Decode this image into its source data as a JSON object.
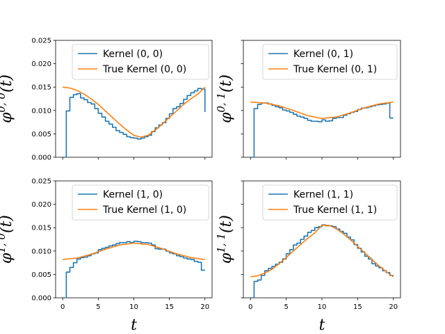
{
  "chart_data": [
    {
      "type": "line",
      "ylabel_base": "φ",
      "ylabel_sup": "0, 0",
      "ylabel_arg": "(t)",
      "xlabel": "",
      "xlim": [
        -1,
        21
      ],
      "ylim": [
        0,
        0.025
      ],
      "xticks": [
        0,
        5,
        10,
        15,
        20
      ],
      "yticks": [
        "0.000",
        "0.005",
        "0.010",
        "0.015",
        "0.020",
        "0.025"
      ],
      "legend_position": "top-right",
      "series": [
        {
          "name": "Kernel (0, 0)",
          "color": "#1f77b4",
          "step": true,
          "x": [
            0,
            0.5,
            1,
            1.5,
            2,
            2.5,
            3,
            3.5,
            4,
            4.5,
            5,
            5.5,
            6,
            6.5,
            7,
            7.5,
            8,
            8.5,
            9,
            9.5,
            10,
            10.5,
            11,
            11.5,
            12,
            12.5,
            13,
            13.5,
            14,
            14.5,
            15,
            15.5,
            16,
            16.5,
            17,
            17.5,
            18,
            18.5,
            19,
            19.5,
            20
          ],
          "y": [
            0,
            0.0099,
            0.0128,
            0.0134,
            0.0136,
            0.0127,
            0.0123,
            0.0117,
            0.0114,
            0.0104,
            0.0094,
            0.0086,
            0.0077,
            0.0071,
            0.0064,
            0.0057,
            0.0053,
            0.0049,
            0.0044,
            0.0042,
            0.0041,
            0.0039,
            0.0041,
            0.0044,
            0.0047,
            0.0055,
            0.0063,
            0.0069,
            0.0074,
            0.0083,
            0.0093,
            0.0104,
            0.0108,
            0.0115,
            0.0124,
            0.0132,
            0.0138,
            0.0142,
            0.0147,
            0.0146,
            0.0097
          ]
        },
        {
          "name": "True Kernel (0, 0)",
          "color": "#ff7f0e",
          "step": false,
          "x": [
            0,
            1,
            2,
            3,
            4,
            5,
            6,
            7,
            8,
            9,
            10,
            11,
            12,
            13,
            14,
            15,
            16,
            17,
            18,
            19,
            20
          ],
          "y": [
            0.015,
            0.0148,
            0.0143,
            0.0135,
            0.0125,
            0.0113,
            0.0099,
            0.0085,
            0.0071,
            0.0058,
            0.0047,
            0.0043,
            0.0047,
            0.0058,
            0.0071,
            0.0085,
            0.0099,
            0.0113,
            0.0125,
            0.0135,
            0.015
          ]
        }
      ]
    },
    {
      "type": "line",
      "ylabel_base": "φ",
      "ylabel_sup": "0, 1",
      "ylabel_arg": "(t)",
      "xlabel": "",
      "xlim": [
        -1,
        21
      ],
      "ylim": [
        0,
        0.025
      ],
      "xticks": [
        0,
        5,
        10,
        15,
        20
      ],
      "yticks": [],
      "legend_position": "top-right",
      "series": [
        {
          "name": "Kernel (0, 1)",
          "color": "#1f77b4",
          "step": true,
          "x": [
            0,
            0.5,
            1,
            1.5,
            2,
            2.5,
            3,
            3.5,
            4,
            4.5,
            5,
            5.5,
            6,
            6.5,
            7,
            7.5,
            8,
            8.5,
            9,
            9.5,
            10,
            10.5,
            11,
            11.5,
            12,
            12.5,
            13,
            13.5,
            14,
            14.5,
            15,
            15.5,
            16,
            16.5,
            17,
            17.5,
            18,
            18.5,
            19,
            19.5,
            20
          ],
          "y": [
            0,
            0.0104,
            0.0113,
            0.0116,
            0.0116,
            0.0114,
            0.0111,
            0.0108,
            0.0106,
            0.0101,
            0.0099,
            0.0096,
            0.0092,
            0.0088,
            0.0086,
            0.0083,
            0.0079,
            0.0077,
            0.0077,
            0.0076,
            0.008,
            0.0077,
            0.0078,
            0.0083,
            0.0085,
            0.0085,
            0.009,
            0.0093,
            0.0096,
            0.0098,
            0.0102,
            0.0105,
            0.0106,
            0.0108,
            0.011,
            0.0112,
            0.0113,
            0.0114,
            0.0116,
            0.0084,
            0.0084
          ]
        },
        {
          "name": "True Kernel (0, 1)",
          "color": "#ff7f0e",
          "step": false,
          "x": [
            0,
            2,
            4,
            6,
            8,
            10,
            12,
            14,
            16,
            18,
            20
          ],
          "y": [
            0.0118,
            0.0116,
            0.011,
            0.01,
            0.0089,
            0.0083,
            0.0086,
            0.0095,
            0.0106,
            0.0114,
            0.0118
          ]
        }
      ]
    },
    {
      "type": "line",
      "ylabel_base": "φ",
      "ylabel_sup": "1, 0",
      "ylabel_arg": "(t)",
      "xlabel": "t",
      "xlim": [
        -1,
        21
      ],
      "ylim": [
        0,
        0.025
      ],
      "xticks": [
        0,
        5,
        10,
        15,
        20
      ],
      "yticks": [
        "0.000",
        "0.005",
        "0.010",
        "0.015",
        "0.020",
        "0.025"
      ],
      "legend_position": "top-right",
      "series": [
        {
          "name": "Kernel (1, 0)",
          "color": "#1f77b4",
          "step": true,
          "x": [
            0,
            0.5,
            1,
            1.5,
            2,
            2.5,
            3,
            3.5,
            4,
            4.5,
            5,
            5.5,
            6,
            6.5,
            7,
            7.5,
            8,
            8.5,
            9,
            9.5,
            10,
            10.5,
            11,
            11.5,
            12,
            12.5,
            13,
            13.5,
            14,
            14.5,
            15,
            15.5,
            16,
            16.5,
            17,
            17.5,
            18,
            18.5,
            19,
            19.5,
            20
          ],
          "y": [
            0,
            0.0055,
            0.0065,
            0.0075,
            0.0083,
            0.0086,
            0.0087,
            0.009,
            0.0094,
            0.0096,
            0.0103,
            0.0106,
            0.0108,
            0.0111,
            0.0113,
            0.0116,
            0.0118,
            0.0118,
            0.012,
            0.0118,
            0.0121,
            0.012,
            0.0118,
            0.0118,
            0.0117,
            0.0113,
            0.0105,
            0.0104,
            0.0104,
            0.01,
            0.0096,
            0.0094,
            0.009,
            0.0088,
            0.0085,
            0.0083,
            0.0082,
            0.0078,
            0.0076,
            0.0059,
            0.0059
          ]
        },
        {
          "name": "True Kernel (1, 0)",
          "color": "#ff7f0e",
          "step": false,
          "x": [
            0,
            2,
            4,
            6,
            8,
            10,
            12,
            14,
            16,
            18,
            20
          ],
          "y": [
            0.0082,
            0.0085,
            0.0093,
            0.0104,
            0.0113,
            0.0117,
            0.0114,
            0.0105,
            0.0094,
            0.0086,
            0.0082
          ]
        }
      ]
    },
    {
      "type": "line",
      "ylabel_base": "φ",
      "ylabel_sup": "1, 1",
      "ylabel_arg": "(t)",
      "xlabel": "t",
      "xlim": [
        -1,
        21
      ],
      "ylim": [
        0,
        0.025
      ],
      "xticks": [
        0,
        5,
        10,
        15,
        20
      ],
      "yticks": [],
      "legend_position": "top-right",
      "series": [
        {
          "name": "Kernel (1, 1)",
          "color": "#1f77b4",
          "step": true,
          "x": [
            0,
            0.5,
            1,
            1.5,
            2,
            2.5,
            3,
            3.5,
            4,
            4.5,
            5,
            5.5,
            6,
            6.5,
            7,
            7.5,
            8,
            8.5,
            9,
            9.5,
            10,
            10.5,
            11,
            11.5,
            12,
            12.5,
            13,
            13.5,
            14,
            14.5,
            15,
            15.5,
            16,
            16.5,
            17,
            17.5,
            18,
            18.5,
            19,
            19.5,
            20
          ],
          "y": [
            0,
            0.0035,
            0.0038,
            0.0048,
            0.0058,
            0.0063,
            0.0067,
            0.0072,
            0.0076,
            0.0083,
            0.0094,
            0.0103,
            0.0113,
            0.0117,
            0.0125,
            0.0132,
            0.014,
            0.0144,
            0.015,
            0.0152,
            0.0156,
            0.0154,
            0.0154,
            0.0152,
            0.0147,
            0.0142,
            0.0138,
            0.013,
            0.0124,
            0.0114,
            0.0106,
            0.0098,
            0.0089,
            0.0083,
            0.0073,
            0.0068,
            0.0064,
            0.0058,
            0.0054,
            0.0048,
            0.0048
          ]
        },
        {
          "name": "True Kernel (1, 1)",
          "color": "#ff7f0e",
          "step": false,
          "x": [
            0,
            1,
            2,
            3,
            4,
            5,
            6,
            7,
            8,
            9,
            10,
            11,
            12,
            13,
            14,
            15,
            16,
            17,
            18,
            19,
            20
          ],
          "y": [
            0.0045,
            0.0047,
            0.0053,
            0.0061,
            0.0073,
            0.0086,
            0.01,
            0.0114,
            0.0127,
            0.0139,
            0.0155,
            0.0155,
            0.0148,
            0.0137,
            0.0124,
            0.011,
            0.0096,
            0.0082,
            0.0068,
            0.0056,
            0.0045
          ]
        }
      ]
    }
  ]
}
